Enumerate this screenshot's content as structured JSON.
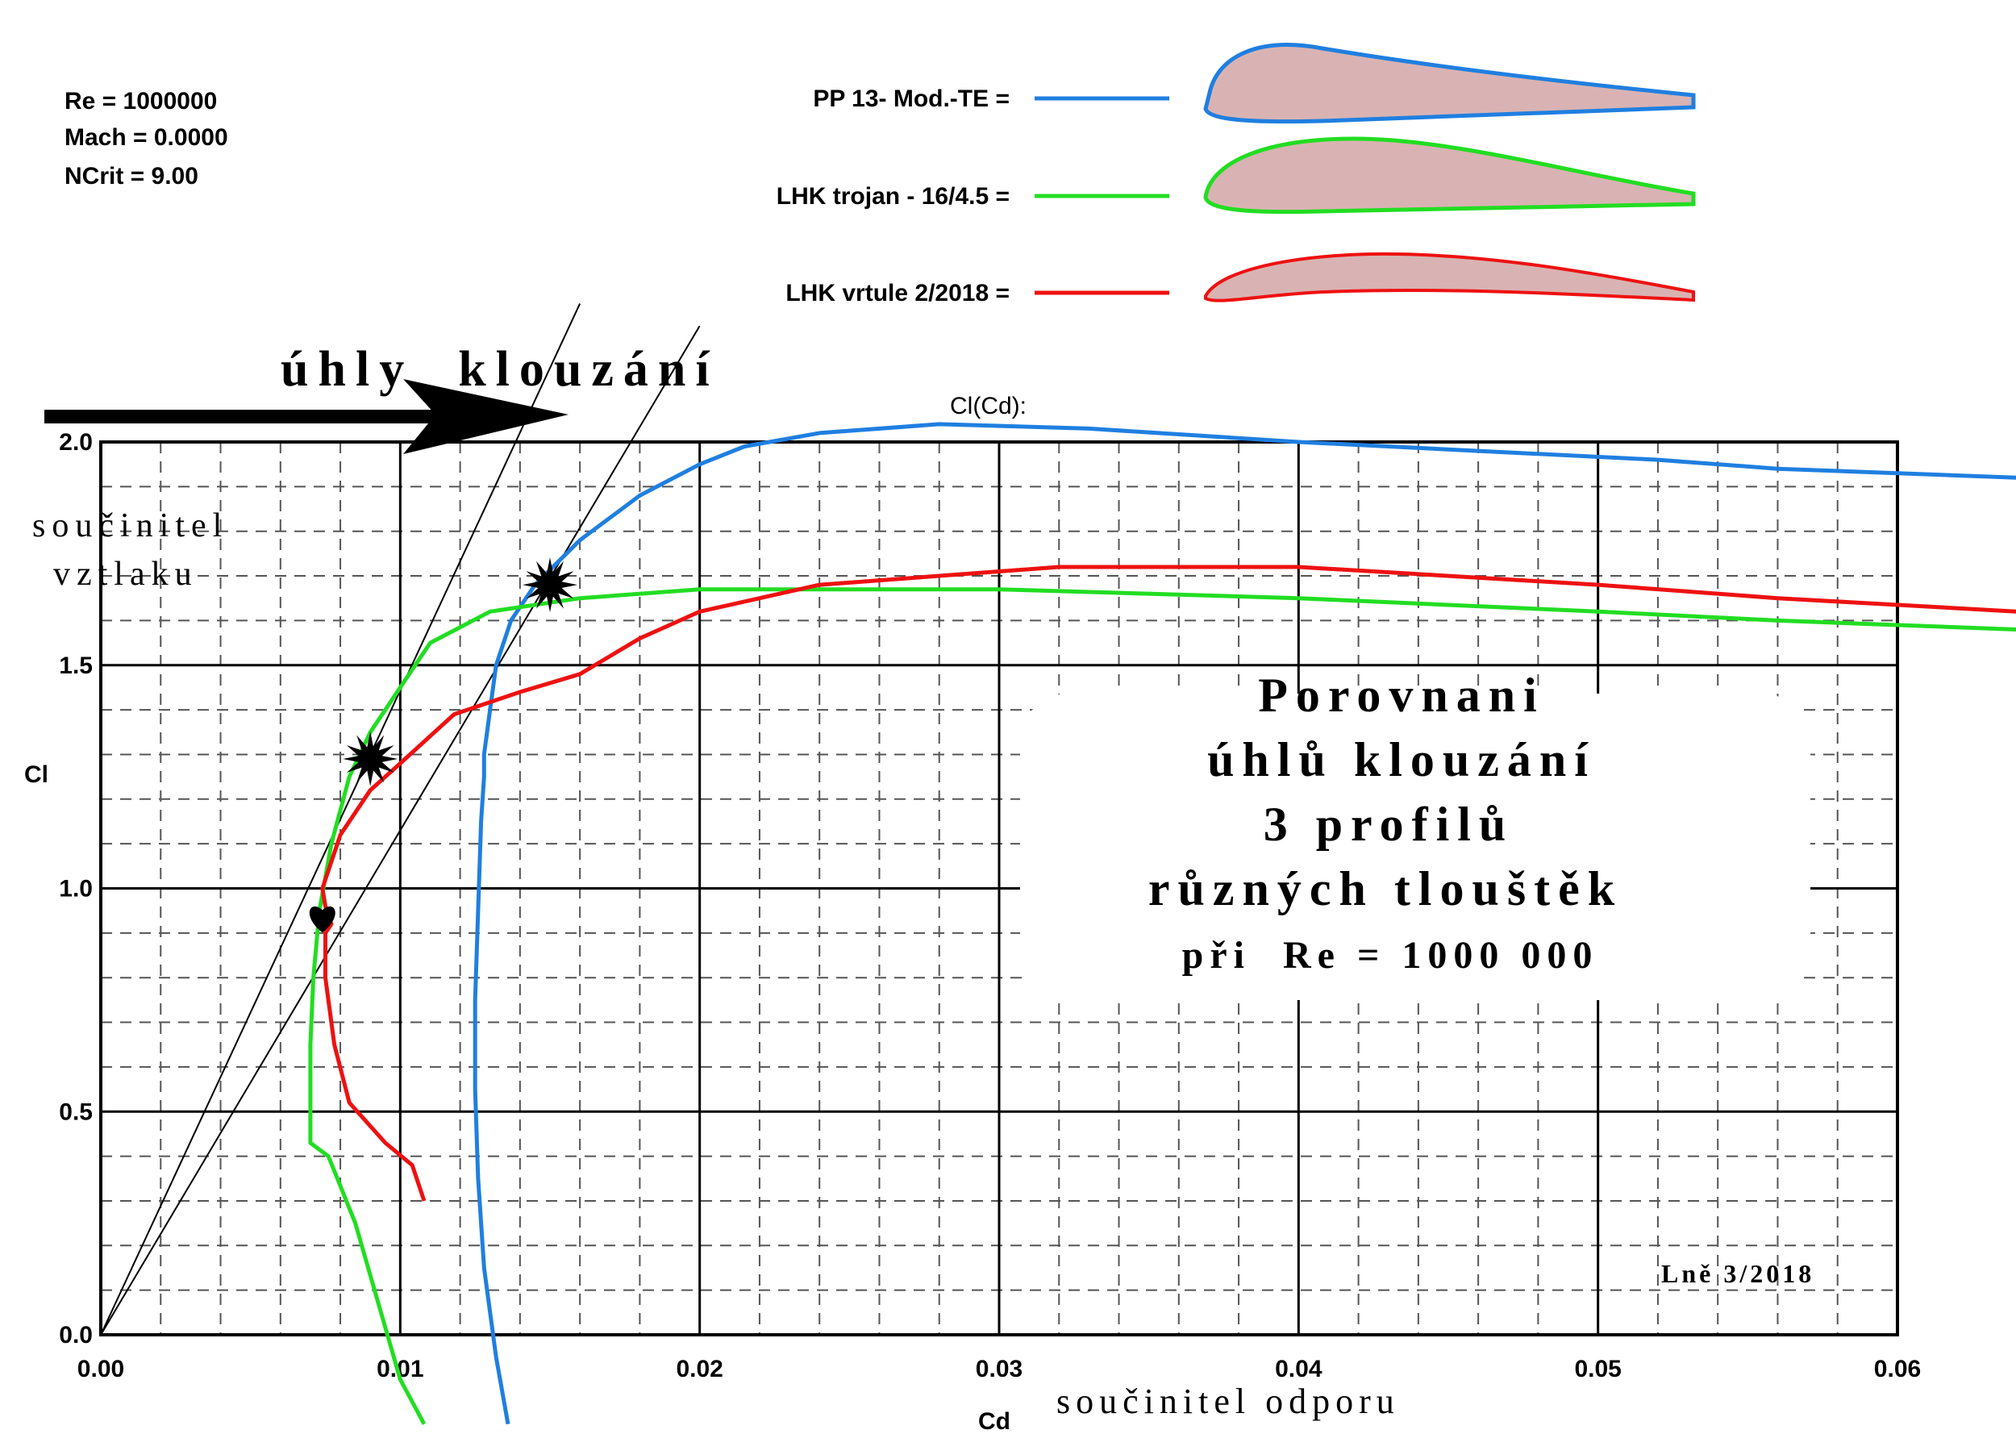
{
  "params": [
    "Re = 1000000",
    "Mach = 0.0000",
    "NCrit = 9.00"
  ],
  "chart_data": {
    "type": "line",
    "title": "Cl(Cd):",
    "xlabel": "Cd",
    "ylabel": "Cl",
    "xlim": [
      0,
      0.06
    ],
    "ylim": [
      0,
      2.0
    ],
    "grid": true,
    "xticks": [
      "0.00",
      "0.01",
      "0.02",
      "0.03",
      "0.04",
      "0.05",
      "0.06"
    ],
    "yticks": [
      "0.0",
      "0.5",
      "1.0",
      "1.5",
      "2.0"
    ],
    "legend_position": "top-center",
    "series": [
      {
        "name": "PP  13- Mod.-TE =",
        "color": "#1f7fe0",
        "x": [
          0.0136,
          0.0132,
          0.0128,
          0.0126,
          0.0125,
          0.0125,
          0.0126,
          0.0127,
          0.0128,
          0.0128,
          0.013,
          0.0132,
          0.0137,
          0.0145,
          0.016,
          0.018,
          0.02,
          0.0215,
          0.024,
          0.028,
          0.033,
          0.04,
          0.046,
          0.052,
          0.056,
          0.064
        ],
        "y": [
          -0.2,
          -0.05,
          0.15,
          0.35,
          0.55,
          0.75,
          0.95,
          1.15,
          1.25,
          1.3,
          1.4,
          1.5,
          1.6,
          1.68,
          1.78,
          1.88,
          1.95,
          1.99,
          2.02,
          2.04,
          2.03,
          2.0,
          1.98,
          1.96,
          1.94,
          1.92
        ]
      },
      {
        "name": "LHK trojan - 16/4.5 =",
        "color": "#22dd22",
        "x": [
          0.0108,
          0.01,
          0.0085,
          0.0076,
          0.007,
          0.007,
          0.0071,
          0.0073,
          0.0077,
          0.0083,
          0.009,
          0.0095,
          0.01,
          0.011,
          0.013,
          0.016,
          0.02,
          0.03,
          0.04,
          0.05,
          0.056,
          0.064
        ],
        "y": [
          -0.2,
          -0.1,
          0.25,
          0.4,
          0.43,
          0.65,
          0.8,
          0.95,
          1.1,
          1.25,
          1.35,
          1.4,
          1.45,
          1.55,
          1.62,
          1.65,
          1.67,
          1.67,
          1.65,
          1.62,
          1.6,
          1.58
        ]
      },
      {
        "name": "LHK vrtule 2/2018 =",
        "color": "#ee1111",
        "x": [
          0.0108,
          0.0104,
          0.0095,
          0.0083,
          0.0078,
          0.0075,
          0.0075,
          0.0077,
          0.0075,
          0.0074,
          0.008,
          0.009,
          0.01,
          0.0118,
          0.014,
          0.016,
          0.018,
          0.02,
          0.024,
          0.032,
          0.04,
          0.05,
          0.056,
          0.064
        ],
        "y": [
          0.3,
          0.38,
          0.43,
          0.52,
          0.65,
          0.8,
          0.9,
          0.92,
          0.96,
          1.0,
          1.12,
          1.22,
          1.28,
          1.39,
          1.44,
          1.48,
          1.56,
          1.62,
          1.68,
          1.72,
          1.72,
          1.68,
          1.65,
          1.62
        ]
      }
    ],
    "glide_lines": [
      {
        "x": [
          0,
          0.016
        ],
        "y": [
          0,
          2.31
        ]
      },
      {
        "x": [
          0,
          0.02
        ],
        "y": [
          0,
          2.26
        ]
      }
    ],
    "star_markers": [
      {
        "x": 0.009,
        "y": 1.29
      },
      {
        "x": 0.015,
        "y": 1.68
      }
    ],
    "heart_marker": {
      "x": 0.0074,
      "y": 0.93
    }
  },
  "overlay": {
    "arrow_label": "úhly  klouzání",
    "ylabel_cz_1": "součinitel",
    "ylabel_cz_2": "vztlaku",
    "xlabel_cz": "součinitel odporu",
    "box_lines": [
      "Porovnani",
      "úhlů klouzání",
      "3 profilů",
      "různých tlouštěk",
      "při  Re = 1000 000"
    ],
    "signature": "Lně 3/2018"
  },
  "colors": {
    "grid_major": "#000000",
    "grid_minor": "#555555",
    "airfoil_fill": "#d9b3b3"
  }
}
